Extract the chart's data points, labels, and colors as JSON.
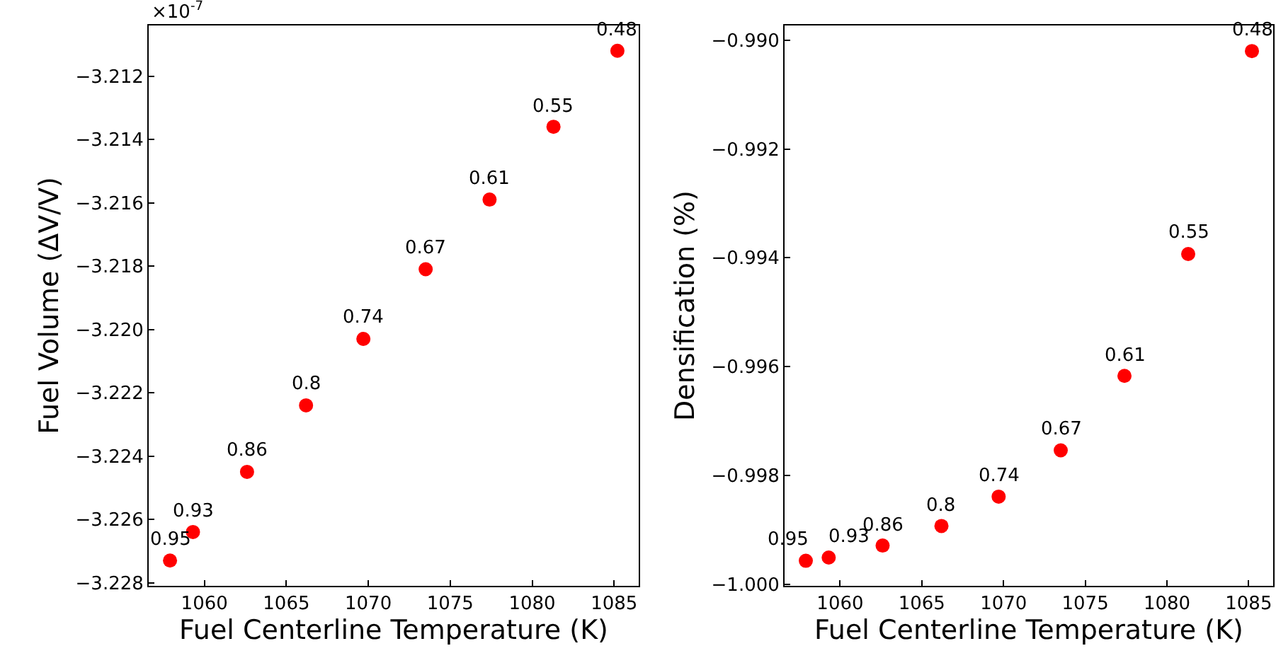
{
  "chart_data": [
    {
      "type": "scatter",
      "xlabel": "Fuel Centerline Temperature (K)",
      "ylabel": "Fuel Volume (ΔV/V)",
      "x": [
        1057.9,
        1059.3,
        1062.6,
        1066.2,
        1069.7,
        1073.5,
        1077.4,
        1081.3,
        1085.2
      ],
      "series": [
        {
          "color": "#ff0000",
          "values": [
            -3.2273,
            -3.2264,
            -3.2245,
            -3.2224,
            -3.2203,
            -3.2181,
            -3.2159,
            -3.2136,
            -3.2112
          ]
        }
      ],
      "xlim": [
        1056.6,
        1086.5
      ],
      "ylim": [
        -3.2281,
        -3.2104
      ],
      "xticks": [
        1060,
        1065,
        1070,
        1075,
        1080,
        1085
      ],
      "yticks": [
        -3.228,
        -3.226,
        -3.224,
        -3.222,
        {
          "value": -3.22,
          "label": "−3.220"
        },
        -3.218,
        -3.216,
        -3.214,
        -3.212
      ],
      "marker": "circle",
      "grid": false,
      "annotations": [
        "×10$^{-7}$",
        {
          "text": "0.95",
          "x": 1057.9,
          "y": -3.2273
        },
        {
          "text": "0.93",
          "x": 1059.3,
          "y": -3.2264
        },
        {
          "text": "0.86",
          "x": 1062.6,
          "y": -3.2245
        },
        {
          "text": "0.8",
          "x": 1066.2,
          "y": -3.2224
        },
        {
          "text": "0.74",
          "x": 1069.7,
          "y": -3.2203
        },
        {
          "text": "0.67",
          "x": 1073.5,
          "y": -3.2181
        },
        {
          "text": "0.61",
          "x": 1077.4,
          "y": -3.2159
        },
        {
          "text": "0.55",
          "x": 1081.3,
          "y": -3.2136
        },
        {
          "text": "0.48",
          "x": 1085.2,
          "y": -3.2112
        }
      ]
    },
    {
      "type": "scatter",
      "xlabel": "Fuel Centerline Temperature (K)",
      "ylabel": "Densification (%)",
      "x": [
        1057.9,
        1059.3,
        1062.6,
        1066.2,
        1069.7,
        1073.5,
        1077.4,
        1081.3,
        1085.2
      ],
      "series": [
        {
          "color": "#ff0000",
          "values": [
            -0.99957,
            -0.99951,
            -0.99929,
            -0.99893,
            -0.99839,
            -0.99754,
            -0.99617,
            -0.99393,
            -0.9902
          ]
        }
      ],
      "xlim": [
        1056.6,
        1086.5
      ],
      "ylim": [
        -1.00003,
        -0.98973
      ],
      "xticks": [
        1060,
        1065,
        1070,
        1075,
        1080,
        1085
      ],
      "yticks": [
        {
          "value": -1,
          "label": "−1.000"
        },
        -0.998,
        -0.996,
        -0.994,
        -0.992,
        {
          "value": -0.99,
          "label": "−0.990"
        }
      ],
      "marker": "circle",
      "grid": false,
      "annotations": [
        {
          "text": "0.95",
          "x": 1057.9,
          "y": -0.99957
        },
        {
          "text": "0.93",
          "x": 1059.3,
          "y": -0.99951
        },
        {
          "text": "0.86",
          "x": 1062.6,
          "y": -0.99929
        },
        {
          "text": "0.8",
          "x": 1066.2,
          "y": -0.99893
        },
        {
          "text": "0.74",
          "x": 1069.7,
          "y": -0.99839
        },
        {
          "text": "0.67",
          "x": 1073.5,
          "y": -0.99754
        },
        {
          "text": "0.61",
          "x": 1077.4,
          "y": -0.99617
        },
        {
          "text": "0.55",
          "x": 1081.3,
          "y": -0.99393
        },
        {
          "text": "0.48",
          "x": 1085.2,
          "y": -0.9902
        }
      ]
    }
  ]
}
